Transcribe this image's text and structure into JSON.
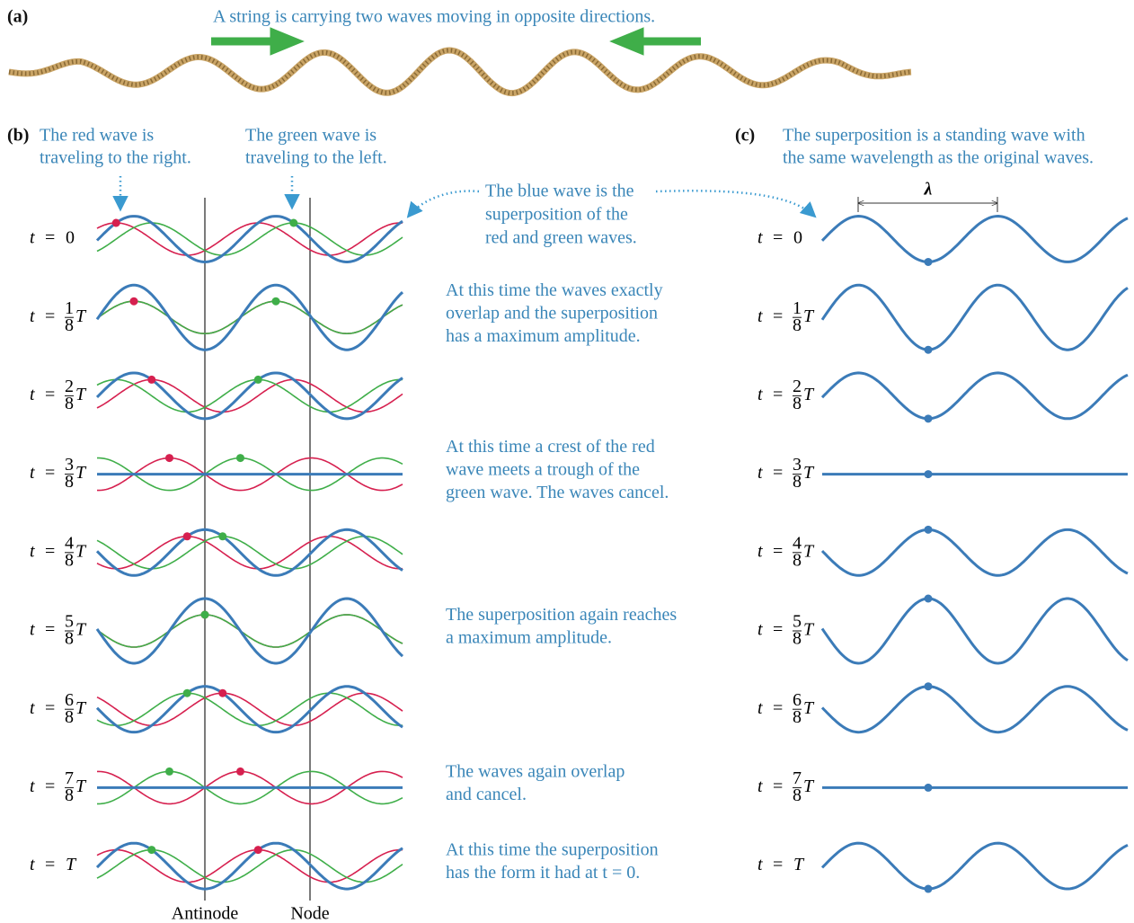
{
  "panel_a": {
    "label": "(a)",
    "caption": "A string is carrying two waves moving in opposite directions."
  },
  "panel_b": {
    "label": "(b)",
    "red_note": [
      "The red wave is",
      "traveling to the right."
    ],
    "green_note": [
      "The green wave is",
      "traveling to the left."
    ],
    "blue_note": [
      "The blue wave is the",
      "superposition of the",
      "red and green waves."
    ],
    "antinode": "Antinode",
    "node": "Node"
  },
  "rows": [
    {
      "time": {
        "lhs": "t",
        "eq": "=",
        "rhs": "0"
      }
    },
    {
      "time": {
        "lhs": "t",
        "eq": "=",
        "num": "1",
        "den": "8",
        "rhs": "T"
      },
      "note": [
        "At this time the waves exactly",
        "overlap and the superposition",
        "has a maximum amplitude."
      ]
    },
    {
      "time": {
        "lhs": "t",
        "eq": "=",
        "num": "2",
        "den": "8",
        "rhs": "T"
      }
    },
    {
      "time": {
        "lhs": "t",
        "eq": "=",
        "num": "3",
        "den": "8",
        "rhs": "T"
      },
      "note": [
        "At this time a crest of the red",
        "wave meets a trough of the",
        "green wave. The waves cancel."
      ]
    },
    {
      "time": {
        "lhs": "t",
        "eq": "=",
        "num": "4",
        "den": "8",
        "rhs": "T"
      }
    },
    {
      "time": {
        "lhs": "t",
        "eq": "=",
        "num": "5",
        "den": "8",
        "rhs": "T"
      },
      "note": [
        "The superposition again reaches",
        "a maximum amplitude."
      ]
    },
    {
      "time": {
        "lhs": "t",
        "eq": "=",
        "num": "6",
        "den": "8",
        "rhs": "T"
      }
    },
    {
      "time": {
        "lhs": "t",
        "eq": "=",
        "num": "7",
        "den": "8",
        "rhs": "T"
      },
      "note": [
        "The waves again overlap",
        "and cancel."
      ]
    },
    {
      "time": {
        "lhs": "t",
        "eq": "=",
        "rhs": "T"
      },
      "note": [
        "At this time the superposition",
        "has the form it had at t = 0."
      ]
    }
  ],
  "panel_c": {
    "label": "(c)",
    "caption": [
      "The superposition is a standing wave with",
      "the same wavelength as the original waves."
    ],
    "lambda": "λ"
  }
}
